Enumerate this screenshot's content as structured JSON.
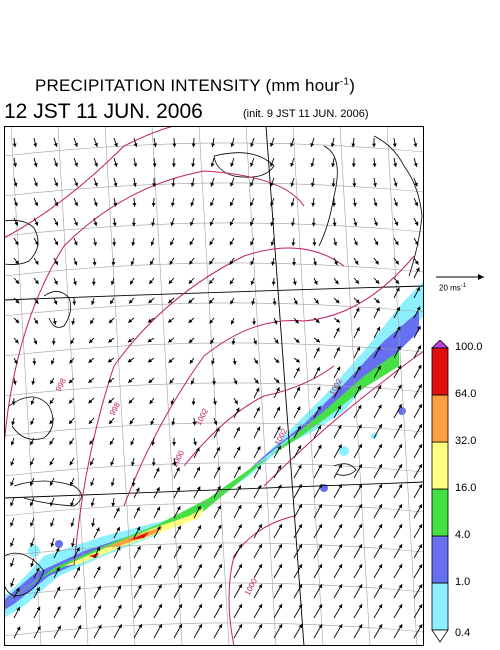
{
  "header": {
    "title_main": "PRECIPITATION INTENSITY (mm hour",
    "title_exp": "-1",
    "title_close": ")",
    "valid_time": "12 JST 11 JUN. 2006",
    "init_time": "(init. 9 JST 11 JUN. 2006)"
  },
  "reference_vector": {
    "label": "20 ms",
    "label_exp": "-1",
    "speed_ms": 20
  },
  "colorbar": {
    "unit": "mm hour-1",
    "levels": [
      "0.4",
      "1.0",
      "4.0",
      "16.0",
      "32.0",
      "64.0",
      "100.0"
    ],
    "colors": [
      "#8cf0ff",
      "#6670f0",
      "#44e044",
      "#ffff80",
      "#ffa040",
      "#e01010"
    ],
    "under_color": "#ffffff",
    "over_color": "#c040e0"
  },
  "map": {
    "isobar_color": "#c0206a",
    "isobar_labels": [
      "998",
      "998",
      "1000",
      "1002",
      "1002",
      "1000",
      "1002"
    ],
    "coastline_color": "#000000",
    "graticule_color": "#a0a0a0"
  }
}
